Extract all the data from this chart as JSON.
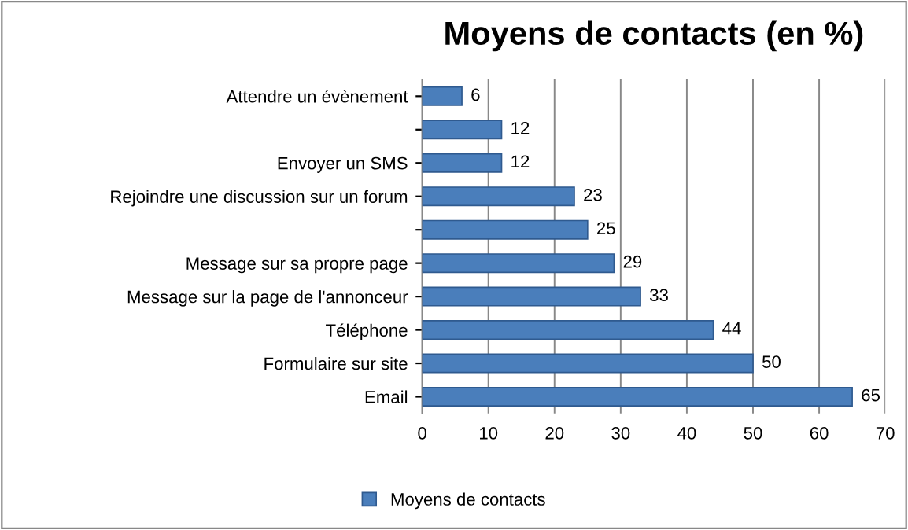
{
  "chart_data": {
    "type": "bar",
    "orientation": "horizontal",
    "title": "Moyens de contacts (en %)",
    "categories": [
      "Attendre un évènement",
      null,
      "Envoyer un SMS",
      "Rejoindre une discussion sur un forum",
      null,
      "Message sur sa propre page",
      "Message sur la page de l'annonceur",
      "Téléphone",
      "Formulaire sur site",
      "Email"
    ],
    "series": [
      {
        "name": "Moyens de contacts",
        "color": "#4a7ebb",
        "values": [
          6,
          12,
          12,
          23,
          25,
          29,
          33,
          44,
          50,
          65
        ]
      }
    ],
    "xlim": [
      0,
      70
    ],
    "xticks": [
      0,
      10,
      20,
      30,
      40,
      50,
      60,
      70
    ],
    "grid": "x",
    "legend": "bottom",
    "data_labels": true
  }
}
